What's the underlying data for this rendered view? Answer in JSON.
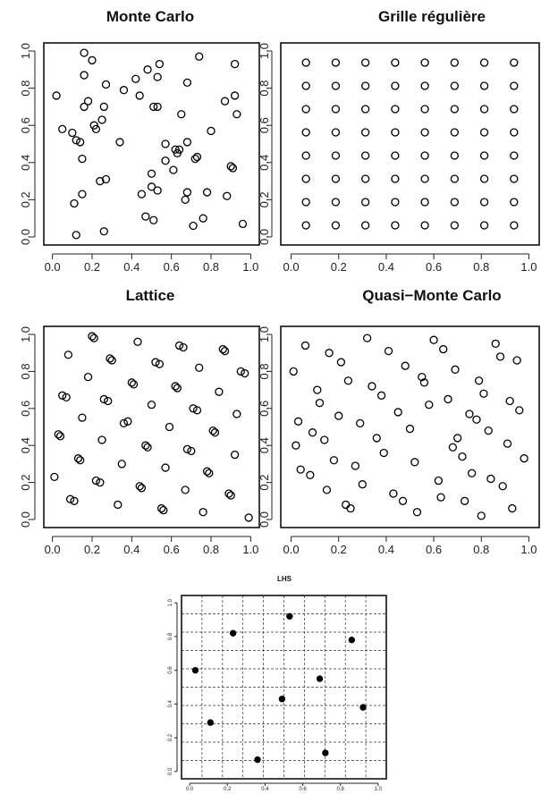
{
  "chart_data": [
    {
      "type": "scatter",
      "title": "Monte Carlo",
      "xlim": [
        0,
        1
      ],
      "ylim": [
        0,
        1
      ],
      "x_ticks": [
        "0.0",
        "0.2",
        "0.4",
        "0.6",
        "0.8",
        "1.0"
      ],
      "y_ticks": [
        "0.0",
        "0.2",
        "0.4",
        "0.6",
        "0.8",
        "1.0"
      ],
      "marker": "open-circle",
      "grid": false,
      "points": [
        [
          0.02,
          0.76
        ],
        [
          0.05,
          0.58
        ],
        [
          0.1,
          0.56
        ],
        [
          0.12,
          0.52
        ],
        [
          0.14,
          0.51
        ],
        [
          0.15,
          0.42
        ],
        [
          0.16,
          0.7
        ],
        [
          0.16,
          0.87
        ],
        [
          0.16,
          0.99
        ],
        [
          0.18,
          0.73
        ],
        [
          0.2,
          0.95
        ],
        [
          0.21,
          0.6
        ],
        [
          0.22,
          0.58
        ],
        [
          0.25,
          0.63
        ],
        [
          0.26,
          0.7
        ],
        [
          0.27,
          0.82
        ],
        [
          0.11,
          0.18
        ],
        [
          0.15,
          0.23
        ],
        [
          0.24,
          0.3
        ],
        [
          0.27,
          0.31
        ],
        [
          0.12,
          0.01
        ],
        [
          0.26,
          0.03
        ],
        [
          0.34,
          0.51
        ],
        [
          0.36,
          0.79
        ],
        [
          0.42,
          0.85
        ],
        [
          0.44,
          0.76
        ],
        [
          0.45,
          0.23
        ],
        [
          0.47,
          0.11
        ],
        [
          0.48,
          0.9
        ],
        [
          0.5,
          0.34
        ],
        [
          0.5,
          0.27
        ],
        [
          0.51,
          0.7
        ],
        [
          0.51,
          0.09
        ],
        [
          0.53,
          0.7
        ],
        [
          0.53,
          0.86
        ],
        [
          0.54,
          0.93
        ],
        [
          0.53,
          0.25
        ],
        [
          0.57,
          0.5
        ],
        [
          0.57,
          0.41
        ],
        [
          0.61,
          0.36
        ],
        [
          0.62,
          0.47
        ],
        [
          0.63,
          0.45
        ],
        [
          0.64,
          0.47
        ],
        [
          0.65,
          0.66
        ],
        [
          0.67,
          0.2
        ],
        [
          0.68,
          0.24
        ],
        [
          0.68,
          0.51
        ],
        [
          0.68,
          0.83
        ],
        [
          0.71,
          0.06
        ],
        [
          0.72,
          0.42
        ],
        [
          0.73,
          0.43
        ],
        [
          0.74,
          0.97
        ],
        [
          0.76,
          0.1
        ],
        [
          0.78,
          0.24
        ],
        [
          0.8,
          0.57
        ],
        [
          0.87,
          0.73
        ],
        [
          0.88,
          0.22
        ],
        [
          0.9,
          0.38
        ],
        [
          0.91,
          0.37
        ],
        [
          0.92,
          0.76
        ],
        [
          0.92,
          0.93
        ],
        [
          0.93,
          0.66
        ],
        [
          0.96,
          0.07
        ]
      ]
    },
    {
      "type": "scatter",
      "title": "Grille régulière",
      "xlim": [
        0,
        1
      ],
      "ylim": [
        0,
        1
      ],
      "x_ticks": [
        "0.0",
        "0.2",
        "0.4",
        "0.6",
        "0.8",
        "1.0"
      ],
      "y_ticks": [
        "0.0",
        "0.2",
        "0.4",
        "0.6",
        "0.8",
        "1.0"
      ],
      "marker": "open-circle",
      "grid": false,
      "grid_points": {
        "x": [
          0.0625,
          0.1875,
          0.3125,
          0.4375,
          0.5625,
          0.6875,
          0.8125,
          0.9375
        ],
        "y": [
          0.0625,
          0.1875,
          0.3125,
          0.4375,
          0.5625,
          0.6875,
          0.8125,
          0.9375
        ]
      }
    },
    {
      "type": "scatter",
      "title": "Lattice",
      "xlim": [
        0,
        1
      ],
      "ylim": [
        0,
        1
      ],
      "x_ticks": [
        "0.0",
        "0.2",
        "0.4",
        "0.6",
        "0.8",
        "1.0"
      ],
      "y_ticks": [
        "0.0",
        "0.2",
        "0.4",
        "0.6",
        "0.8",
        "1.0"
      ],
      "marker": "open-circle",
      "grid": false,
      "points": [
        [
          0.01,
          0.23
        ],
        [
          0.03,
          0.46
        ],
        [
          0.04,
          0.45
        ],
        [
          0.05,
          0.67
        ],
        [
          0.07,
          0.66
        ],
        [
          0.08,
          0.89
        ],
        [
          0.09,
          0.11
        ],
        [
          0.11,
          0.1
        ],
        [
          0.13,
          0.33
        ],
        [
          0.14,
          0.32
        ],
        [
          0.15,
          0.55
        ],
        [
          0.18,
          0.77
        ],
        [
          0.2,
          0.99
        ],
        [
          0.21,
          0.98
        ],
        [
          0.22,
          0.21
        ],
        [
          0.24,
          0.2
        ],
        [
          0.25,
          0.43
        ],
        [
          0.26,
          0.65
        ],
        [
          0.28,
          0.64
        ],
        [
          0.29,
          0.87
        ],
        [
          0.3,
          0.86
        ],
        [
          0.33,
          0.08
        ],
        [
          0.35,
          0.3
        ],
        [
          0.36,
          0.52
        ],
        [
          0.38,
          0.53
        ],
        [
          0.4,
          0.74
        ],
        [
          0.41,
          0.73
        ],
        [
          0.43,
          0.96
        ],
        [
          0.44,
          0.18
        ],
        [
          0.45,
          0.17
        ],
        [
          0.47,
          0.4
        ],
        [
          0.48,
          0.39
        ],
        [
          0.5,
          0.62
        ],
        [
          0.52,
          0.85
        ],
        [
          0.54,
          0.84
        ],
        [
          0.55,
          0.06
        ],
        [
          0.56,
          0.05
        ],
        [
          0.57,
          0.28
        ],
        [
          0.59,
          0.5
        ],
        [
          0.62,
          0.72
        ],
        [
          0.63,
          0.71
        ],
        [
          0.64,
          0.94
        ],
        [
          0.66,
          0.93
        ],
        [
          0.67,
          0.16
        ],
        [
          0.68,
          0.38
        ],
        [
          0.7,
          0.37
        ],
        [
          0.71,
          0.6
        ],
        [
          0.73,
          0.59
        ],
        [
          0.74,
          0.82
        ],
        [
          0.76,
          0.04
        ],
        [
          0.78,
          0.26
        ],
        [
          0.79,
          0.25
        ],
        [
          0.81,
          0.48
        ],
        [
          0.82,
          0.47
        ],
        [
          0.84,
          0.69
        ],
        [
          0.86,
          0.92
        ],
        [
          0.87,
          0.91
        ],
        [
          0.89,
          0.14
        ],
        [
          0.9,
          0.13
        ],
        [
          0.92,
          0.35
        ],
        [
          0.93,
          0.57
        ],
        [
          0.95,
          0.8
        ],
        [
          0.97,
          0.79
        ],
        [
          0.99,
          0.01
        ]
      ]
    },
    {
      "type": "scatter",
      "title": "Quasi−Monte Carlo",
      "xlim": [
        0,
        1
      ],
      "ylim": [
        0,
        1
      ],
      "x_ticks": [
        "0.0",
        "0.2",
        "0.4",
        "0.6",
        "0.8",
        "1.0"
      ],
      "y_ticks": [
        "0.0",
        "0.2",
        "0.4",
        "0.6",
        "0.8",
        "1.0"
      ],
      "marker": "open-circle",
      "grid": false,
      "points": [
        [
          0.01,
          0.8
        ],
        [
          0.02,
          0.4
        ],
        [
          0.03,
          0.53
        ],
        [
          0.04,
          0.27
        ],
        [
          0.06,
          0.94
        ],
        [
          0.08,
          0.24
        ],
        [
          0.09,
          0.47
        ],
        [
          0.11,
          0.7
        ],
        [
          0.12,
          0.63
        ],
        [
          0.14,
          0.43
        ],
        [
          0.15,
          0.16
        ],
        [
          0.16,
          0.9
        ],
        [
          0.18,
          0.32
        ],
        [
          0.2,
          0.56
        ],
        [
          0.21,
          0.85
        ],
        [
          0.23,
          0.08
        ],
        [
          0.24,
          0.75
        ],
        [
          0.25,
          0.06
        ],
        [
          0.27,
          0.29
        ],
        [
          0.29,
          0.52
        ],
        [
          0.3,
          0.19
        ],
        [
          0.32,
          0.98
        ],
        [
          0.34,
          0.72
        ],
        [
          0.36,
          0.44
        ],
        [
          0.38,
          0.67
        ],
        [
          0.39,
          0.36
        ],
        [
          0.41,
          0.91
        ],
        [
          0.43,
          0.14
        ],
        [
          0.45,
          0.58
        ],
        [
          0.47,
          0.1
        ],
        [
          0.48,
          0.83
        ],
        [
          0.5,
          0.49
        ],
        [
          0.52,
          0.31
        ],
        [
          0.53,
          0.04
        ],
        [
          0.55,
          0.77
        ],
        [
          0.56,
          0.74
        ],
        [
          0.58,
          0.62
        ],
        [
          0.6,
          0.97
        ],
        [
          0.62,
          0.21
        ],
        [
          0.63,
          0.12
        ],
        [
          0.64,
          0.92
        ],
        [
          0.66,
          0.65
        ],
        [
          0.68,
          0.39
        ],
        [
          0.69,
          0.81
        ],
        [
          0.7,
          0.44
        ],
        [
          0.72,
          0.34
        ],
        [
          0.73,
          0.1
        ],
        [
          0.75,
          0.57
        ],
        [
          0.76,
          0.25
        ],
        [
          0.78,
          0.54
        ],
        [
          0.79,
          0.75
        ],
        [
          0.8,
          0.02
        ],
        [
          0.81,
          0.68
        ],
        [
          0.83,
          0.48
        ],
        [
          0.84,
          0.22
        ],
        [
          0.86,
          0.95
        ],
        [
          0.88,
          0.88
        ],
        [
          0.89,
          0.18
        ],
        [
          0.91,
          0.41
        ],
        [
          0.92,
          0.64
        ],
        [
          0.93,
          0.06
        ],
        [
          0.95,
          0.86
        ],
        [
          0.96,
          0.59
        ],
        [
          0.98,
          0.33
        ]
      ]
    },
    {
      "type": "scatter",
      "title": "LHS",
      "xlim": [
        0,
        1
      ],
      "ylim": [
        0,
        1
      ],
      "x_ticks": [
        "0.0",
        "0.2",
        "0.4",
        "0.6",
        "0.8",
        "1.0"
      ],
      "y_ticks": [
        "0.0",
        "0.2",
        "0.4",
        "0.6",
        "0.8",
        "1.0"
      ],
      "marker": "filled-circle",
      "grid": true,
      "grid_divisions": 10,
      "points": [
        [
          0.03,
          0.6
        ],
        [
          0.11,
          0.29
        ],
        [
          0.23,
          0.82
        ],
        [
          0.36,
          0.07
        ],
        [
          0.49,
          0.43
        ],
        [
          0.53,
          0.92
        ],
        [
          0.69,
          0.55
        ],
        [
          0.72,
          0.11
        ],
        [
          0.86,
          0.78
        ],
        [
          0.92,
          0.38
        ]
      ]
    }
  ]
}
